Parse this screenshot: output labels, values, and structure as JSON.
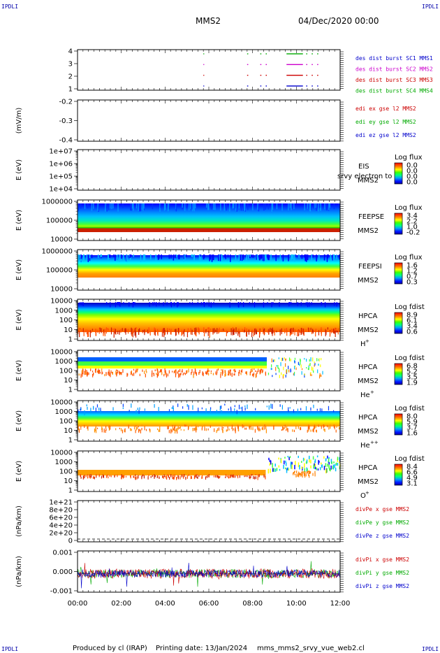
{
  "header": {
    "corner_left_top": "IPDLI",
    "corner_right_top": "IPDLI",
    "corner_left_bottom": "IPDLI",
    "corner_right_bottom": "IPDLI",
    "spacecraft": "MMS2",
    "datetime": "04/Dec/2020 00:00"
  },
  "footer": {
    "produced_by": "Produced by cl (IRAP)",
    "printing_date": "Printing date: 13/Jan/2024",
    "filename": "mms_mms2_srvy_vue_web2.cl"
  },
  "chart_data": {
    "type": "multi-panel time series (stacked)",
    "x_ticks": [
      "00:00",
      "02:00",
      "04:00",
      "06:00",
      "08:00",
      "10:00",
      "12:00"
    ],
    "x_range_hours": [
      0,
      12
    ],
    "panels": [
      {
        "id": "burst",
        "type": "scatter",
        "ylabel": "",
        "yticks": [
          "4",
          "3",
          "2",
          "1"
        ],
        "legend": [
          {
            "label": "des dist burst SC1 MMS1",
            "color": "#0000cc"
          },
          {
            "label": "des dist burst SC2 MMS2",
            "color": "#cc00cc"
          },
          {
            "label": "des dist burst SC3 MMS3",
            "color": "#cc0000"
          },
          {
            "label": "des dist burst SC4 MMS4",
            "color": "#00aa00"
          }
        ],
        "burst_intervals_hours": [
          [
            5.75,
            5.78
          ],
          [
            7.75,
            7.8
          ],
          [
            8.35,
            8.4
          ],
          [
            8.6,
            8.65
          ],
          [
            9.55,
            10.3
          ],
          [
            10.45,
            10.5
          ],
          [
            10.7,
            10.75
          ],
          [
            10.95,
            11.0
          ]
        ]
      },
      {
        "id": "edi",
        "type": "line",
        "ylabel": "(mV/m)",
        "yticks": [
          "-0.2",
          "-0.3",
          "-0.4"
        ],
        "legend": [
          {
            "label": "edi ex gse l2 MMS2",
            "color": "#cc0000"
          },
          {
            "label": "edi ey gse l2 MMS2",
            "color": "#00aa00"
          },
          {
            "label": "edi ez gse l2 MMS2",
            "color": "#0000cc"
          }
        ]
      },
      {
        "id": "eis",
        "type": "heatmap",
        "ylabel": "E (eV)",
        "yticks": [
          "1e+07",
          "1e+06",
          "1e+05",
          "1e+04"
        ],
        "instrument": "EIS",
        "species_line": "srvy electron to",
        "spacecraft": "MMS2",
        "colorbar_title": "Log flux",
        "colorbar_ticks": [
          "0.0",
          "0.0",
          "0.0",
          "0.0"
        ]
      },
      {
        "id": "feepse",
        "type": "heatmap",
        "ylabel": "E (eV)",
        "yticks": [
          "1000000",
          "100000",
          "10000"
        ],
        "instrument": "FEEPSE",
        "spacecraft": "MMS2",
        "colorbar_title": "Log flux",
        "colorbar_ticks": [
          "3.4",
          "2.2",
          "1.0",
          "-0.2"
        ]
      },
      {
        "id": "feepsi",
        "type": "heatmap",
        "ylabel": "E (eV)",
        "yticks": [
          "1000000",
          "100000",
          "10000"
        ],
        "instrument": "FEEPSI",
        "spacecraft": "MMS2",
        "colorbar_title": "Log flux",
        "colorbar_ticks": [
          "1.6",
          "1.2",
          "0.7",
          "0.3"
        ]
      },
      {
        "id": "hpca_h",
        "type": "heatmap",
        "ylabel": "E (eV)",
        "yticks": [
          "10000",
          "1000",
          "100",
          "10",
          "1"
        ],
        "instrument": "HPCA",
        "spacecraft": "MMS2",
        "species": "H",
        "species_sup": "+",
        "colorbar_title": "Log fdist",
        "colorbar_ticks": [
          "8.9",
          "6.1",
          "3.4",
          "0.6"
        ]
      },
      {
        "id": "hpca_he",
        "type": "heatmap",
        "ylabel": "E (eV)",
        "yticks": [
          "10000",
          "1000",
          "100",
          "10",
          "1"
        ],
        "instrument": "HPCA",
        "spacecraft": "MMS2",
        "species": "He",
        "species_sup": "+",
        "colorbar_title": "Log fdist",
        "colorbar_ticks": [
          "6.8",
          "5.2",
          "3.5",
          "1.9"
        ]
      },
      {
        "id": "hpca_hepp",
        "type": "heatmap",
        "ylabel": "E (eV)",
        "yticks": [
          "10000",
          "1000",
          "100",
          "10",
          "1"
        ],
        "instrument": "HPCA",
        "spacecraft": "MMS2",
        "species": "He",
        "species_sup": "++",
        "colorbar_title": "Log fdist",
        "colorbar_ticks": [
          "8.0",
          "5.9",
          "3.7",
          "1.6"
        ]
      },
      {
        "id": "hpca_o",
        "type": "heatmap",
        "ylabel": "E (eV)",
        "yticks": [
          "10000",
          "1000",
          "100",
          "10",
          "1"
        ],
        "instrument": "HPCA",
        "spacecraft": "MMS2",
        "species": "O",
        "species_sup": "+",
        "colorbar_title": "Log fdist",
        "colorbar_ticks": [
          "8.4",
          "6.6",
          "4.9",
          "3.1"
        ]
      },
      {
        "id": "divpe",
        "type": "line",
        "ylabel": "(nPa/km)",
        "yticks": [
          "1e+21",
          "8e+20",
          "6e+20",
          "4e+20",
          "2e+20",
          "0"
        ],
        "legend": [
          {
            "label": "divPe x gse MMS2",
            "color": "#cc0000"
          },
          {
            "label": "divPe y gse MMS2",
            "color": "#00aa00"
          },
          {
            "label": "divPe z gse MMS2",
            "color": "#0000cc"
          }
        ]
      },
      {
        "id": "divpi",
        "type": "line",
        "ylabel": "(nPa/km)",
        "yticks": [
          "0.001",
          "0.000",
          "-0.001"
        ],
        "legend": [
          {
            "label": "divPi x gse MMS2",
            "color": "#cc0000"
          },
          {
            "label": "divPi y gse MMS2",
            "color": "#00aa00"
          },
          {
            "label": "divPi z gse MMS2",
            "color": "#0000cc"
          }
        ]
      }
    ]
  }
}
